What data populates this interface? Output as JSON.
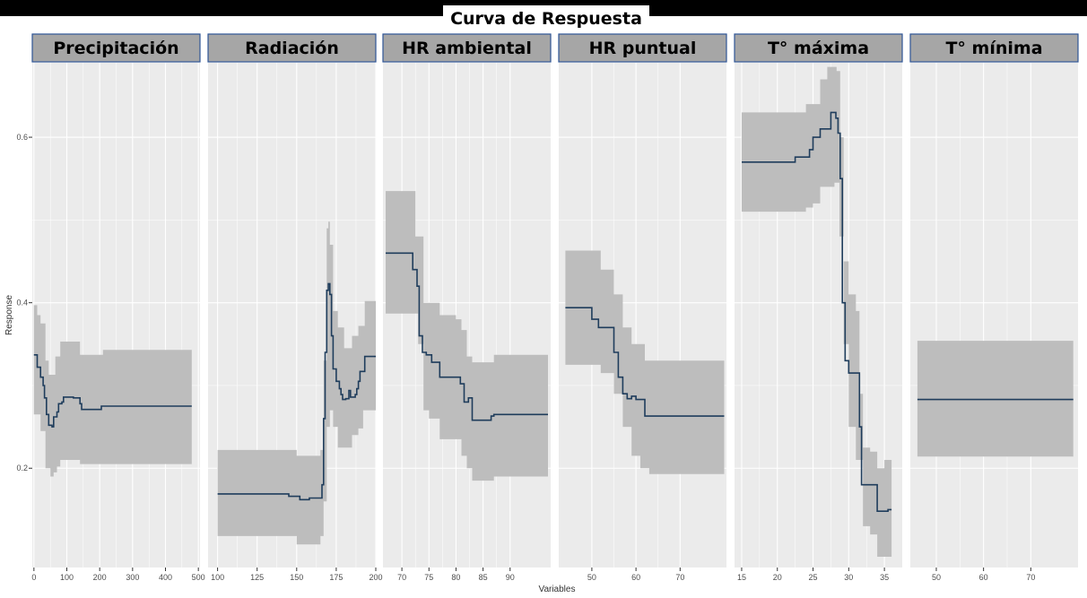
{
  "title": "Curva de Respuesta",
  "colors": {
    "panel_bg": "#ebebeb",
    "strip_bg": "#a6a6a6",
    "strip_border": "#2e5597",
    "ribbon": "#bdbdbd",
    "line": "#1f3d5c",
    "grid": "#ffffff",
    "axis_text": "#4d4d4d"
  },
  "chart_data": {
    "type": "line",
    "title": "Curva de Respuesta",
    "xlabel": "Variables",
    "ylabel": "Response",
    "ylim": [
      0.08,
      0.69
    ],
    "yticks": [
      0.2,
      0.4,
      0.6
    ],
    "ytick_labels": [
      "0.2",
      "0.4",
      "0.6"
    ],
    "panels": [
      {
        "name": "Precipitación",
        "xlim": [
          -5,
          505
        ],
        "xticks": [
          0,
          100,
          200,
          300,
          400,
          500
        ],
        "xtick_labels": [
          "0",
          "100",
          "200",
          "300",
          "400",
          "500"
        ],
        "points": [
          [
            0,
            0.337
          ],
          [
            10,
            0.322
          ],
          [
            20,
            0.31
          ],
          [
            28,
            0.3
          ],
          [
            32,
            0.285
          ],
          [
            38,
            0.265
          ],
          [
            45,
            0.252
          ],
          [
            55,
            0.25
          ],
          [
            60,
            0.262
          ],
          [
            70,
            0.268
          ],
          [
            75,
            0.278
          ],
          [
            85,
            0.28
          ],
          [
            90,
            0.286
          ],
          [
            120,
            0.285
          ],
          [
            140,
            0.278
          ],
          [
            145,
            0.271
          ],
          [
            200,
            0.271
          ],
          [
            205,
            0.275
          ],
          [
            480,
            0.275
          ]
        ],
        "lower": [
          [
            0,
            0.265
          ],
          [
            20,
            0.245
          ],
          [
            35,
            0.2
          ],
          [
            50,
            0.19
          ],
          [
            60,
            0.195
          ],
          [
            70,
            0.202
          ],
          [
            80,
            0.21
          ],
          [
            100,
            0.21
          ],
          [
            140,
            0.205
          ],
          [
            480,
            0.205
          ]
        ],
        "upper": [
          [
            0,
            0.397
          ],
          [
            10,
            0.385
          ],
          [
            20,
            0.375
          ],
          [
            35,
            0.33
          ],
          [
            45,
            0.313
          ],
          [
            55,
            0.313
          ],
          [
            65,
            0.335
          ],
          [
            80,
            0.353
          ],
          [
            120,
            0.353
          ],
          [
            140,
            0.337
          ],
          [
            200,
            0.337
          ],
          [
            210,
            0.343
          ],
          [
            480,
            0.343
          ]
        ]
      },
      {
        "name": "Radiación",
        "xlim": [
          94,
          200
        ],
        "xticks": [
          100,
          125,
          150,
          175,
          200
        ],
        "xtick_labels": [
          "100",
          "125",
          "150",
          "175",
          "200"
        ],
        "points": [
          [
            100,
            0.169
          ],
          [
            140,
            0.169
          ],
          [
            145,
            0.166
          ],
          [
            150,
            0.166
          ],
          [
            152,
            0.162
          ],
          [
            157,
            0.162
          ],
          [
            158,
            0.164
          ],
          [
            165,
            0.164
          ],
          [
            166,
            0.18
          ],
          [
            167,
            0.26
          ],
          [
            168,
            0.34
          ],
          [
            169,
            0.415
          ],
          [
            170,
            0.423
          ],
          [
            171,
            0.41
          ],
          [
            172,
            0.36
          ],
          [
            173,
            0.32
          ],
          [
            175,
            0.305
          ],
          [
            177,
            0.296
          ],
          [
            178,
            0.289
          ],
          [
            179,
            0.283
          ],
          [
            181,
            0.284
          ],
          [
            183,
            0.294
          ],
          [
            184,
            0.286
          ],
          [
            187,
            0.289
          ],
          [
            188,
            0.296
          ],
          [
            189,
            0.305
          ],
          [
            190,
            0.317
          ],
          [
            193,
            0.335
          ],
          [
            200,
            0.335
          ]
        ],
        "lower": [
          [
            100,
            0.118
          ],
          [
            140,
            0.118
          ],
          [
            150,
            0.108
          ],
          [
            160,
            0.108
          ],
          [
            165,
            0.118
          ],
          [
            167,
            0.16
          ],
          [
            169,
            0.25
          ],
          [
            171,
            0.27
          ],
          [
            173,
            0.25
          ],
          [
            176,
            0.225
          ],
          [
            181,
            0.225
          ],
          [
            185,
            0.24
          ],
          [
            189,
            0.248
          ],
          [
            192,
            0.27
          ],
          [
            200,
            0.27
          ]
        ],
        "upper": [
          [
            100,
            0.222
          ],
          [
            145,
            0.222
          ],
          [
            150,
            0.215
          ],
          [
            160,
            0.215
          ],
          [
            165,
            0.222
          ],
          [
            167,
            0.33
          ],
          [
            169,
            0.49
          ],
          [
            170,
            0.498
          ],
          [
            171,
            0.47
          ],
          [
            173,
            0.39
          ],
          [
            176,
            0.37
          ],
          [
            180,
            0.345
          ],
          [
            185,
            0.36
          ],
          [
            189,
            0.372
          ],
          [
            193,
            0.402
          ],
          [
            200,
            0.402
          ]
        ]
      },
      {
        "name": "HR ambiental",
        "xlim": [
          66.5,
          97.5
        ],
        "xticks": [
          70,
          75,
          80,
          85,
          90
        ],
        "xtick_labels": [
          "70",
          "75",
          "80",
          "85",
          "90"
        ],
        "points": [
          [
            67,
            0.46
          ],
          [
            71.5,
            0.46
          ],
          [
            72,
            0.44
          ],
          [
            72.8,
            0.42
          ],
          [
            73.2,
            0.36
          ],
          [
            73.8,
            0.34
          ],
          [
            74.5,
            0.337
          ],
          [
            75.5,
            0.328
          ],
          [
            77,
            0.31
          ],
          [
            80,
            0.31
          ],
          [
            80.8,
            0.302
          ],
          [
            81.5,
            0.28
          ],
          [
            82.3,
            0.285
          ],
          [
            83,
            0.258
          ],
          [
            86,
            0.258
          ],
          [
            86.5,
            0.263
          ],
          [
            87,
            0.265
          ],
          [
            97,
            0.265
          ]
        ],
        "lower": [
          [
            67,
            0.387
          ],
          [
            71,
            0.387
          ],
          [
            73,
            0.35
          ],
          [
            74,
            0.27
          ],
          [
            75,
            0.26
          ],
          [
            77,
            0.235
          ],
          [
            80,
            0.235
          ],
          [
            81,
            0.215
          ],
          [
            82,
            0.2
          ],
          [
            83,
            0.185
          ],
          [
            86,
            0.185
          ],
          [
            87,
            0.19
          ],
          [
            97,
            0.19
          ]
        ],
        "upper": [
          [
            67,
            0.535
          ],
          [
            71.5,
            0.535
          ],
          [
            72.5,
            0.48
          ],
          [
            74,
            0.4
          ],
          [
            77,
            0.385
          ],
          [
            80,
            0.38
          ],
          [
            81,
            0.367
          ],
          [
            82,
            0.335
          ],
          [
            83,
            0.328
          ],
          [
            86,
            0.328
          ],
          [
            87,
            0.337
          ],
          [
            97,
            0.337
          ]
        ]
      },
      {
        "name": "HR puntual",
        "xlim": [
          42.5,
          80.5
        ],
        "xticks": [
          50,
          60,
          70
        ],
        "xtick_labels": [
          "50",
          "60",
          "70"
        ],
        "points": [
          [
            44,
            0.394
          ],
          [
            49,
            0.394
          ],
          [
            50,
            0.38
          ],
          [
            51.5,
            0.37
          ],
          [
            54,
            0.37
          ],
          [
            55,
            0.34
          ],
          [
            56,
            0.31
          ],
          [
            57,
            0.29
          ],
          [
            58,
            0.284
          ],
          [
            59,
            0.287
          ],
          [
            60,
            0.283
          ],
          [
            61,
            0.283
          ],
          [
            62,
            0.263
          ],
          [
            80,
            0.263
          ]
        ],
        "lower": [
          [
            44,
            0.325
          ],
          [
            49,
            0.325
          ],
          [
            52,
            0.315
          ],
          [
            55,
            0.29
          ],
          [
            57,
            0.25
          ],
          [
            59,
            0.215
          ],
          [
            61,
            0.2
          ],
          [
            63,
            0.193
          ],
          [
            80,
            0.193
          ]
        ],
        "upper": [
          [
            44,
            0.463
          ],
          [
            50,
            0.463
          ],
          [
            52,
            0.44
          ],
          [
            55,
            0.41
          ],
          [
            57,
            0.37
          ],
          [
            59,
            0.35
          ],
          [
            61,
            0.35
          ],
          [
            62,
            0.33
          ],
          [
            80,
            0.33
          ]
        ]
      },
      {
        "name": "T° máxima",
        "xlim": [
          14,
          37.5
        ],
        "xticks": [
          15,
          20,
          25,
          30,
          35
        ],
        "xtick_labels": [
          "15",
          "20",
          "25",
          "30",
          "35"
        ],
        "points": [
          [
            15,
            0.57
          ],
          [
            22,
            0.57
          ],
          [
            22.5,
            0.576
          ],
          [
            24,
            0.576
          ],
          [
            24.5,
            0.585
          ],
          [
            25,
            0.6
          ],
          [
            26,
            0.61
          ],
          [
            27,
            0.61
          ],
          [
            27.5,
            0.63
          ],
          [
            28.2,
            0.623
          ],
          [
            28.5,
            0.605
          ],
          [
            28.8,
            0.55
          ],
          [
            29.1,
            0.4
          ],
          [
            29.5,
            0.33
          ],
          [
            30,
            0.315
          ],
          [
            31,
            0.315
          ],
          [
            31.5,
            0.25
          ],
          [
            31.8,
            0.18
          ],
          [
            33,
            0.18
          ],
          [
            34,
            0.148
          ],
          [
            35,
            0.148
          ],
          [
            35.5,
            0.15
          ],
          [
            36,
            0.15
          ]
        ],
        "lower": [
          [
            15,
            0.51
          ],
          [
            22,
            0.51
          ],
          [
            24,
            0.515
          ],
          [
            25,
            0.52
          ],
          [
            26,
            0.54
          ],
          [
            28,
            0.545
          ],
          [
            28.7,
            0.48
          ],
          [
            29.3,
            0.35
          ],
          [
            30,
            0.25
          ],
          [
            31,
            0.21
          ],
          [
            32,
            0.13
          ],
          [
            33,
            0.12
          ],
          [
            34,
            0.093
          ],
          [
            36,
            0.097
          ]
        ],
        "upper": [
          [
            15,
            0.63
          ],
          [
            22,
            0.63
          ],
          [
            24,
            0.64
          ],
          [
            26,
            0.67
          ],
          [
            27,
            0.685
          ],
          [
            28.3,
            0.68
          ],
          [
            28.8,
            0.6
          ],
          [
            29.3,
            0.45
          ],
          [
            30,
            0.41
          ],
          [
            31,
            0.39
          ],
          [
            31.5,
            0.29
          ],
          [
            32,
            0.225
          ],
          [
            33,
            0.22
          ],
          [
            34,
            0.2
          ],
          [
            35,
            0.21
          ],
          [
            36,
            0.21
          ]
        ]
      },
      {
        "name": "T° mínima",
        "xlim": [
          44.5,
          80
        ],
        "xticks": [
          50,
          60,
          70
        ],
        "xtick_labels": [
          "50",
          "60",
          "70"
        ],
        "points": [
          [
            46,
            0.283
          ],
          [
            79,
            0.283
          ]
        ],
        "lower": [
          [
            46,
            0.214
          ],
          [
            79,
            0.214
          ]
        ],
        "upper": [
          [
            46,
            0.354
          ],
          [
            79,
            0.354
          ]
        ]
      }
    ]
  }
}
